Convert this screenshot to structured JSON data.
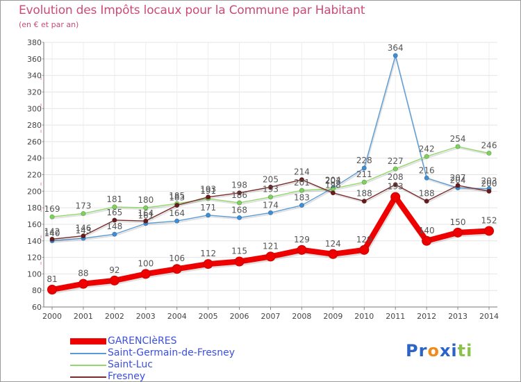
{
  "chart_data": {
    "type": "line",
    "title": "Evolution des Impôts locaux pour la Commune par Habitant",
    "subtitle": "(en € et par an)",
    "xlabel": "",
    "ylabel": "",
    "ylim": [
      60,
      380
    ],
    "ytick_step": 20,
    "categories": [
      "2000",
      "2001",
      "2002",
      "2003",
      "2004",
      "2005",
      "2006",
      "2007",
      "2008",
      "2009",
      "2010",
      "2011",
      "2012",
      "2013",
      "2014"
    ],
    "grid": true,
    "series": [
      {
        "name": "GARENCIèRES",
        "color": "#ee0000",
        "marker_color": "#ee0000",
        "emphasis": "thick",
        "values": [
          81,
          88,
          92,
          100,
          106,
          112,
          115,
          121,
          129,
          124,
          129,
          193,
          140,
          150,
          152
        ],
        "labels": [
          "81",
          "88",
          "92",
          "100",
          "106",
          "112",
          "115",
          "121",
          "129",
          "124",
          "129",
          "193",
          "140",
          "150",
          "152"
        ]
      },
      {
        "name": "Saint-Germain-de-Fresney",
        "color": "#5a9bd5",
        "marker_color": "#3b8fd9",
        "emphasis": "thin",
        "values": [
          140,
          143,
          148,
          161,
          164,
          171,
          168,
          174,
          183,
          204,
          228,
          364,
          216,
          204,
          203
        ],
        "labels": [
          "140",
          "143",
          "148",
          "161",
          "164",
          "171",
          "168",
          "174",
          "183",
          "204",
          "228",
          "364",
          "216",
          "204",
          "203"
        ]
      },
      {
        "name": "Saint-Luc",
        "color": "#8fd86a",
        "marker_color": "#7bd35a",
        "emphasis": "thin",
        "values": [
          169,
          173,
          181,
          180,
          185,
          191,
          186,
          193,
          201,
          203,
          211,
          227,
          242,
          254,
          246
        ],
        "labels": [
          "169",
          "173",
          "181",
          "180",
          "185",
          "191",
          "186",
          "193",
          "201",
          "203",
          "211",
          "227",
          "242",
          "254",
          "246"
        ]
      },
      {
        "name": "Fresney",
        "color": "#7a2a2a",
        "marker_color": "#6b1a1a",
        "emphasis": "thin",
        "values": [
          142,
          146,
          165,
          164,
          183,
          193,
          198,
          205,
          214,
          198,
          188,
          208,
          188,
          207,
          200
        ],
        "labels": [
          "142",
          "146",
          "165",
          "164",
          "183",
          "193",
          "198",
          "205",
          "214",
          "198",
          "188",
          "208",
          "188",
          "207",
          "200"
        ]
      }
    ],
    "legend_position": "bottom-left"
  },
  "brand": {
    "logo_text": "Proxiti",
    "letter_colors": [
      "#2b63c8",
      "#2b63c8",
      "#f08a1c",
      "#2b63c8",
      "#2b63c8",
      "#8bc34a",
      "#8bc34a"
    ]
  }
}
